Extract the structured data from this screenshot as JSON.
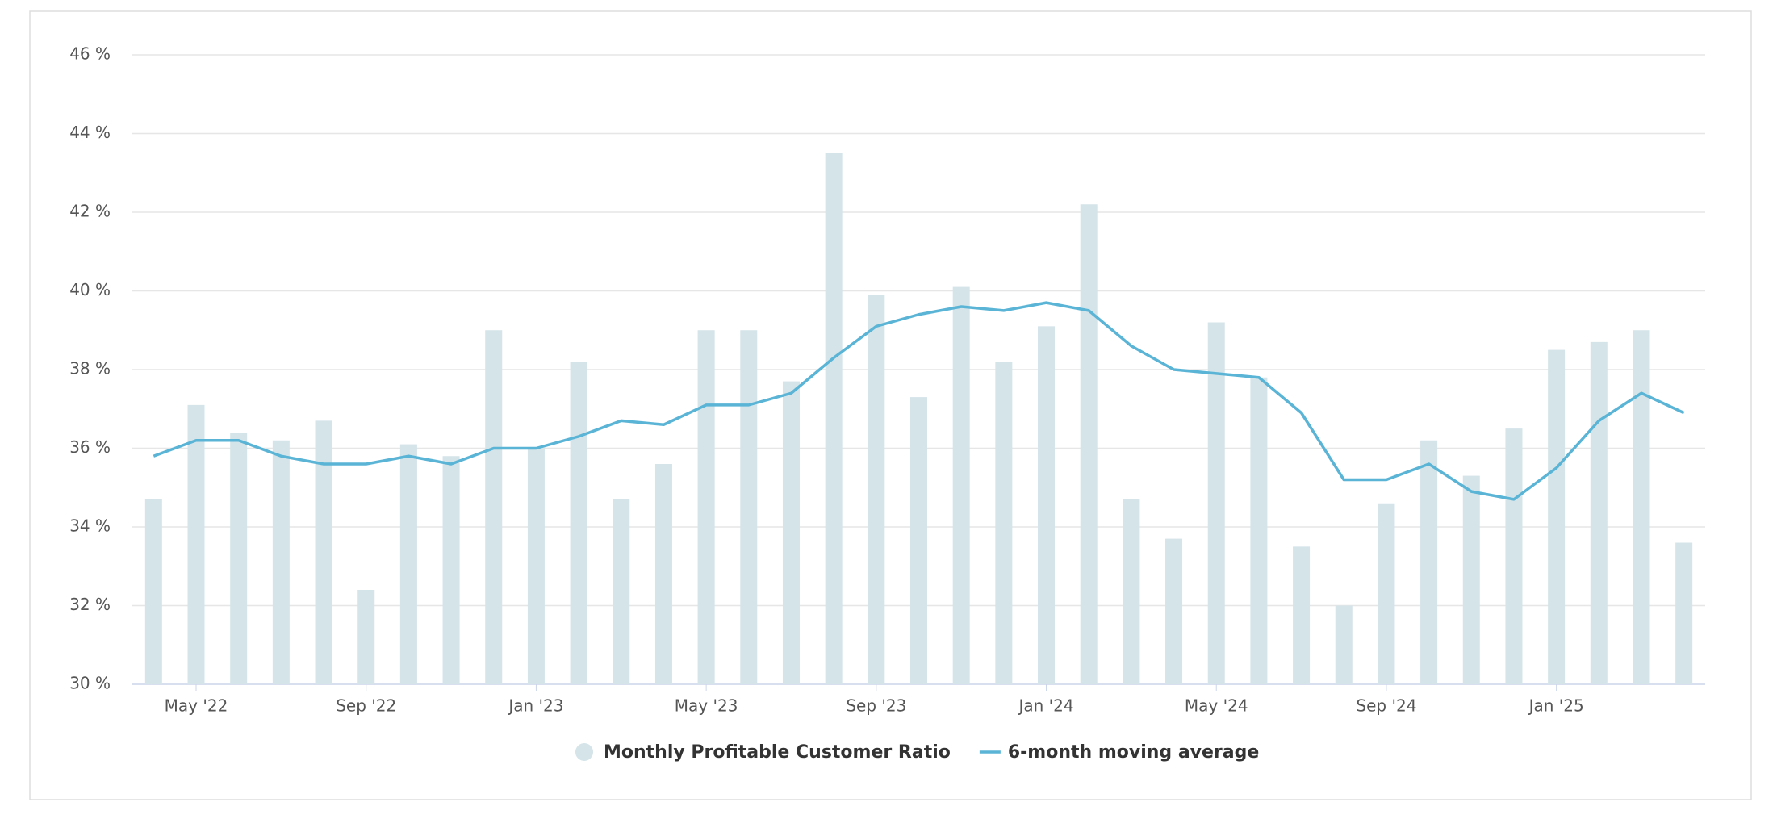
{
  "chart_data": {
    "type": "bar_line",
    "categories": [
      null,
      "May '22",
      null,
      null,
      null,
      "Sep '22",
      null,
      null,
      null,
      "Jan '23",
      null,
      null,
      null,
      "May '23",
      null,
      null,
      null,
      "Sep '23",
      null,
      null,
      null,
      "Jan '24",
      null,
      null,
      null,
      "May '24",
      null,
      null,
      null,
      "Sep '24",
      null,
      null,
      null,
      "Jan '25",
      null,
      null,
      null
    ],
    "series": [
      {
        "name": "Monthly Profitable Customer Ratio",
        "type": "bar",
        "color": "#d4e4e9",
        "values": [
          34.7,
          37.1,
          36.4,
          36.2,
          36.7,
          32.4,
          36.1,
          35.8,
          39.0,
          36.0,
          38.2,
          34.7,
          35.6,
          39.0,
          39.0,
          37.7,
          43.5,
          39.9,
          37.3,
          40.1,
          38.2,
          39.1,
          42.2,
          34.7,
          33.7,
          39.2,
          37.8,
          33.5,
          32.0,
          34.6,
          36.2,
          35.3,
          36.5,
          38.5,
          38.7,
          39.0,
          33.6
        ]
      },
      {
        "name": "6-month moving average",
        "type": "line",
        "color": "#5ab4d6",
        "values": [
          35.8,
          36.2,
          36.2,
          35.8,
          35.6,
          35.6,
          35.8,
          35.6,
          36.0,
          36.0,
          36.3,
          36.7,
          36.6,
          37.1,
          37.1,
          37.4,
          38.3,
          39.1,
          39.4,
          39.6,
          39.5,
          39.7,
          39.5,
          38.6,
          38.0,
          37.9,
          37.8,
          36.9,
          35.2,
          35.2,
          35.6,
          34.9,
          34.7,
          35.5,
          36.7,
          37.4,
          36.9
        ]
      }
    ],
    "ylim": [
      30,
      46
    ],
    "yticks": [
      {
        "value": 30,
        "label": "30 %"
      },
      {
        "value": 32,
        "label": "32 %"
      },
      {
        "value": 34,
        "label": "34 %"
      },
      {
        "value": 36,
        "label": "36 %"
      },
      {
        "value": 38,
        "label": "38 %"
      },
      {
        "value": 40,
        "label": "40 %"
      },
      {
        "value": 42,
        "label": "42 %"
      },
      {
        "value": 44,
        "label": "44 %"
      },
      {
        "value": 46,
        "label": "46 %"
      }
    ],
    "grid": true
  }
}
